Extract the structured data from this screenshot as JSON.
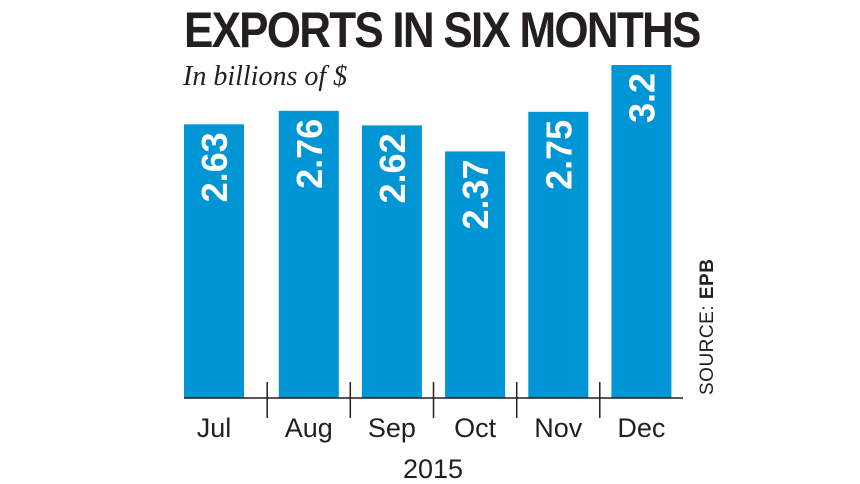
{
  "title": "EXPORTS IN SIX MONTHS",
  "subtitle": "In billions of $",
  "source_label": "SOURCE:",
  "source_name": "EPB",
  "colors": {
    "bar": "#0096d6",
    "text": "#231f20",
    "value_label": "#ffffff"
  },
  "chart_data": {
    "type": "bar",
    "title": "EXPORTS IN SIX MONTHS",
    "subtitle": "In billions of $",
    "categories": [
      "Jul",
      "Aug",
      "Sep",
      "Oct",
      "Nov",
      "Dec"
    ],
    "values": [
      2.63,
      2.76,
      2.62,
      2.37,
      2.75,
      3.2
    ],
    "value_labels": [
      "2.63",
      "2.76",
      "2.62",
      "2.37",
      "2.75",
      "3.2"
    ],
    "xlabel": "2015",
    "ylabel": "",
    "ylim": [
      0,
      3.2
    ],
    "grid": false,
    "legend": "none"
  }
}
